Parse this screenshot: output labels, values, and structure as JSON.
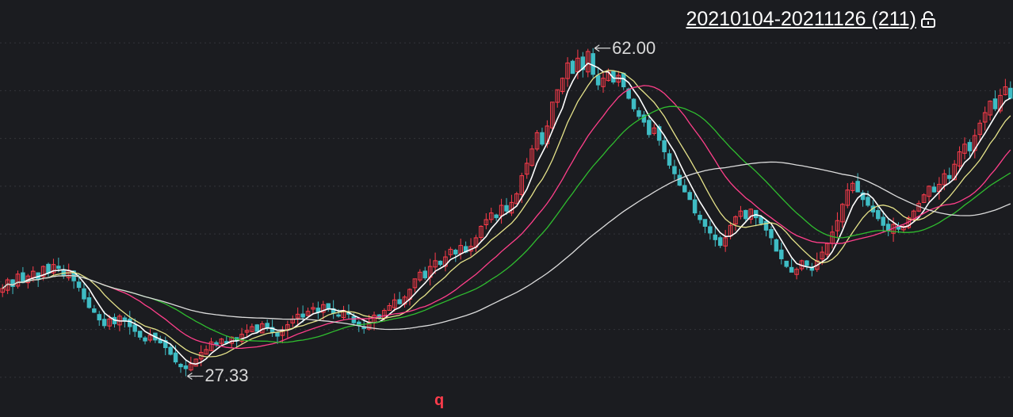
{
  "range": {
    "label": "20210104-20211126 (211)",
    "lock_icon": "unlock-icon"
  },
  "high_marker": {
    "label": "62.00",
    "value": 62.0
  },
  "low_marker": {
    "label": "27.33",
    "value": 27.33
  },
  "bottom_marker": "q",
  "colors": {
    "background": "#1b1c20",
    "up": "#ff3c4b",
    "down": "#3fbcc4",
    "ma1": "#ffffff",
    "ma2": "#e6e38a",
    "ma3": "#ff3f8a",
    "ma4": "#2fbd2f",
    "ma5": "#dcdcdc"
  },
  "chart_data": {
    "type": "candlestick",
    "period": "20210104-20211126",
    "count": 211,
    "ylim": [
      25,
      64
    ],
    "grid": "horizontal dashed",
    "closes": [
      36.3,
      37.2,
      36.5,
      37.8,
      36.9,
      37.6,
      38.1,
      37.3,
      38.6,
      37.9,
      38.8,
      38.4,
      37.6,
      38.2,
      37.1,
      36.4,
      35.2,
      34.3,
      33.8,
      33.0,
      32.4,
      33.1,
      32.6,
      33.4,
      32.9,
      32.3,
      31.8,
      31.2,
      30.8,
      31.4,
      30.9,
      30.6,
      30.1,
      29.4,
      28.6,
      28.1,
      27.9,
      28.4,
      28.9,
      29.6,
      29.9,
      30.7,
      30.4,
      31.0,
      30.6,
      31.2,
      30.8,
      31.5,
      31.9,
      32.3,
      31.8,
      32.6,
      32.2,
      31.7,
      31.3,
      31.9,
      32.5,
      33.1,
      33.6,
      33.3,
      33.9,
      34.3,
      33.8,
      34.6,
      34.2,
      33.7,
      33.4,
      34.0,
      33.6,
      32.7,
      32.4,
      32.1,
      32.8,
      33.5,
      33.2,
      34.0,
      34.5,
      35.1,
      34.7,
      35.4,
      36.2,
      37.3,
      38.0,
      37.4,
      38.6,
      39.2,
      38.8,
      39.6,
      40.4,
      39.9,
      40.8,
      40.1,
      40.7,
      41.6,
      42.8,
      43.5,
      44.2,
      43.7,
      45.0,
      44.4,
      45.3,
      46.2,
      48.1,
      49.4,
      50.9,
      52.6,
      51.4,
      53.3,
      55.8,
      57.1,
      58.3,
      59.9,
      58.8,
      60.4,
      59.2,
      61.1,
      58.7,
      57.6,
      58.3,
      59.1,
      57.9,
      58.6,
      57.4,
      56.2,
      55.1,
      54.3,
      53.7,
      52.4,
      53.1,
      51.8,
      50.6,
      49.2,
      48.3,
      47.1,
      46.4,
      45.6,
      44.2,
      43.5,
      42.8,
      42.1,
      41.4,
      40.8,
      41.6,
      42.9,
      43.8,
      44.4,
      43.6,
      44.6,
      43.7,
      43.1,
      42.4,
      41.6,
      40.2,
      39.4,
      38.6,
      38.0,
      38.3,
      39.2,
      38.7,
      38.2,
      39.2,
      40.1,
      41.0,
      42.2,
      43.4,
      45.1,
      46.6,
      47.3,
      46.4,
      45.6,
      45.0,
      44.3,
      43.6,
      42.9,
      42.3,
      43.0,
      42.5,
      42.8,
      43.7,
      44.4,
      45.2,
      46.1,
      47.0,
      46.4,
      47.2,
      48.3,
      47.8,
      49.3,
      50.6,
      51.4,
      50.7,
      52.3,
      53.6,
      54.7,
      55.9,
      55.1,
      56.5,
      57.4,
      56.2
    ],
    "ma_periods": [
      5,
      10,
      20,
      30,
      60
    ]
  }
}
